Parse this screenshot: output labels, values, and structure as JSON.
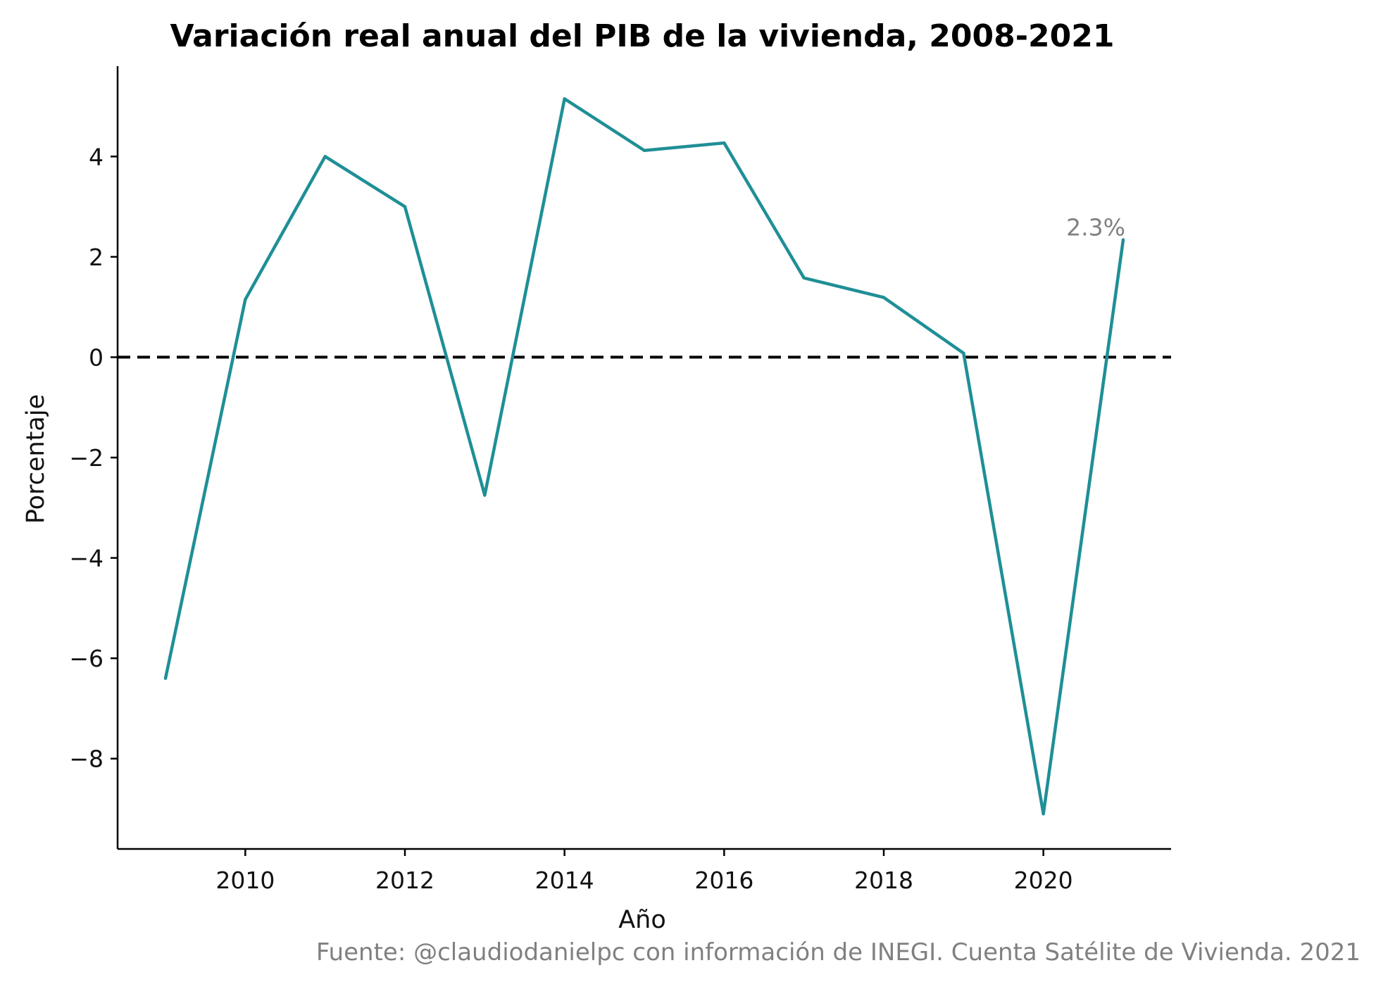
{
  "chart_data": {
    "type": "line",
    "title": "Variación real anual del PIB de la vivienda, 2008-2021",
    "xlabel": "Año",
    "ylabel": "Porcentaje",
    "x": [
      2009,
      2010,
      2011,
      2012,
      2013,
      2014,
      2015,
      2016,
      2017,
      2018,
      2019,
      2020,
      2021
    ],
    "series": [
      {
        "values": [
          -6.4,
          1.15,
          4.0,
          3.0,
          -2.75,
          5.15,
          4.12,
          4.27,
          1.58,
          1.19,
          0.08,
          -9.1,
          2.34
        ]
      }
    ],
    "xlim": [
      2008.4,
      2021.6
    ],
    "ylim": [
      -9.8,
      5.8
    ],
    "xticks": [
      2010,
      2012,
      2014,
      2016,
      2018,
      2020
    ],
    "yticks": [
      4,
      2,
      0,
      -2,
      -4,
      -6,
      -8
    ],
    "ytick_labels": [
      "4",
      "2",
      "0",
      "−2",
      "−4",
      "−6",
      "−8"
    ],
    "reference_line": {
      "y": 0,
      "style": "dashed",
      "color": "#000000"
    },
    "annotation": {
      "text": "2.3%",
      "x": 2021,
      "y": 2.34
    },
    "line_color": "#1f8f96",
    "grid": false,
    "spines": [
      "left",
      "bottom"
    ]
  },
  "source_note": "Fuente: @claudiodanielpc con información de INEGI. Cuenta Satélite de Vivienda. 2021"
}
